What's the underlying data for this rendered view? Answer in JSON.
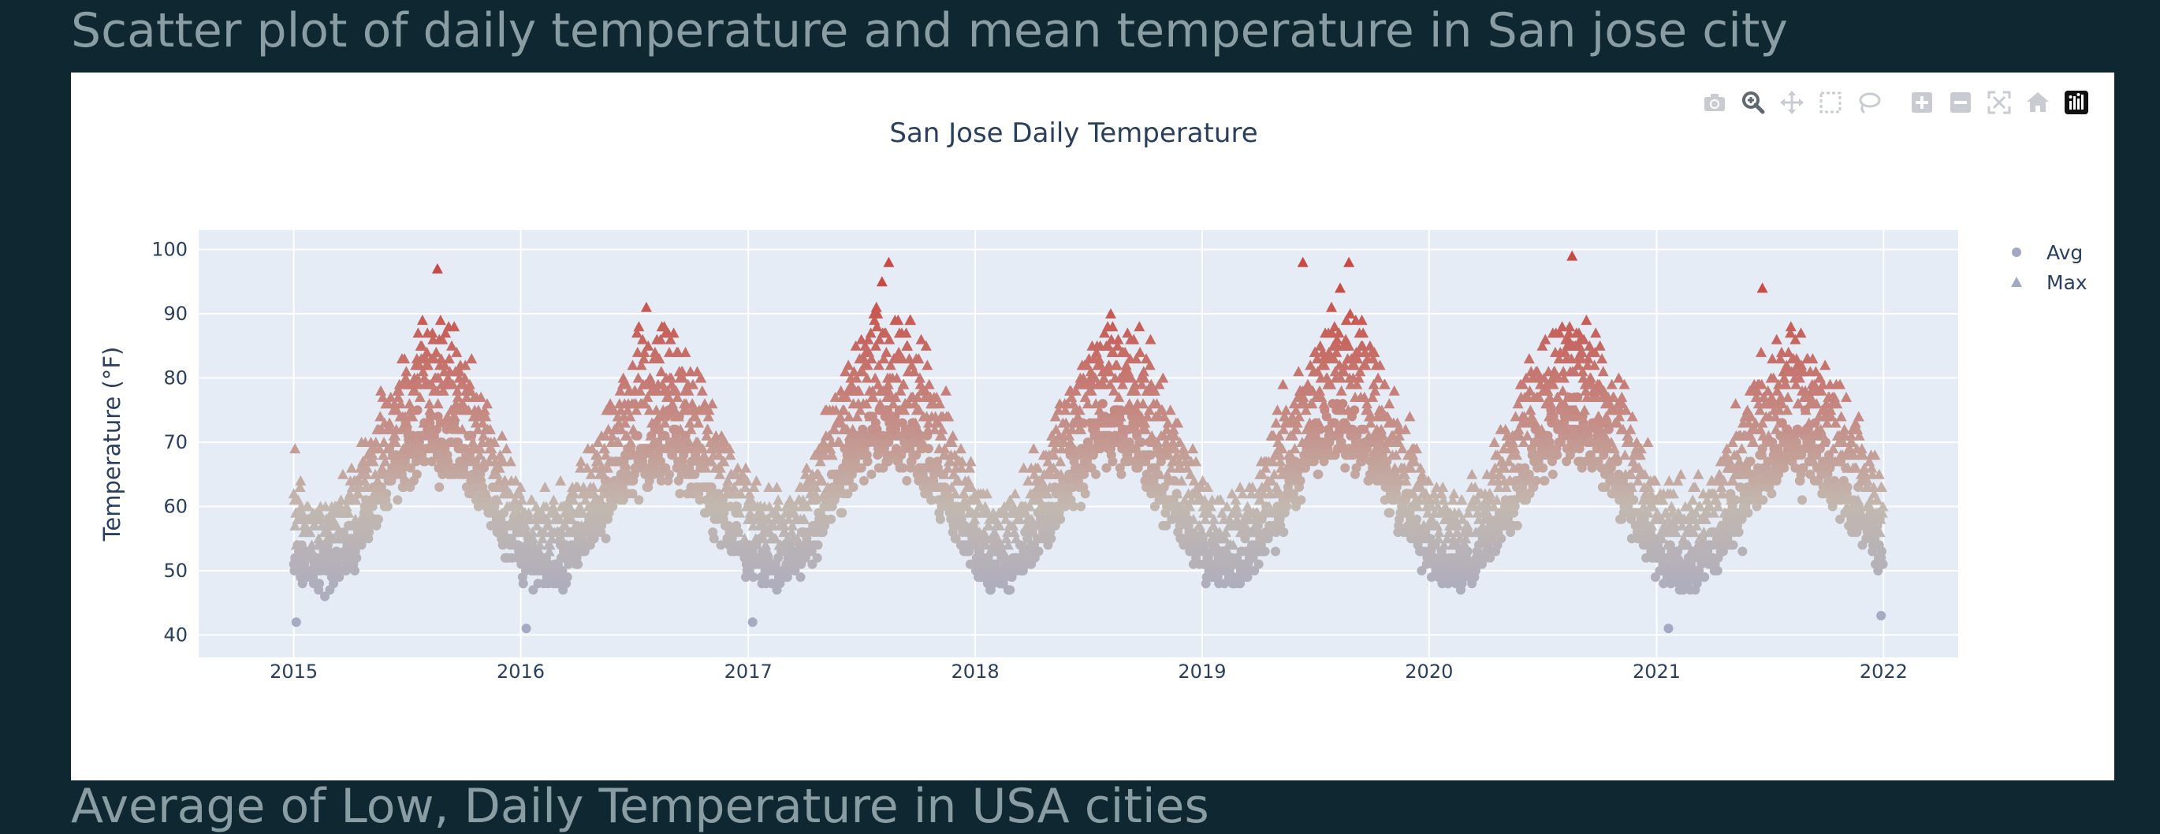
{
  "page": {
    "heading": "Scatter plot of daily temperature and mean temperature in San jose city",
    "next_heading": "Average of  Low, Daily Temperature in USA cities"
  },
  "modebar": [
    {
      "name": "camera-icon",
      "label": "Download plot as a png"
    },
    {
      "name": "zoom-icon",
      "label": "Zoom"
    },
    {
      "name": "pan-icon",
      "label": "Pan"
    },
    {
      "name": "box-select-icon",
      "label": "Box Select"
    },
    {
      "name": "lasso-select-icon",
      "label": "Lasso Select"
    },
    {
      "name": "zoom-in-icon",
      "label": "Zoom in"
    },
    {
      "name": "zoom-out-icon",
      "label": "Zoom out"
    },
    {
      "name": "autoscale-icon",
      "label": "Autoscale"
    },
    {
      "name": "reset-axes-icon",
      "label": "Reset axes"
    },
    {
      "name": "plotly-logo-icon",
      "label": "Produced with Plotly"
    }
  ],
  "colors": {
    "page_bg": "#0e2730",
    "panel_bg": "#ffffff",
    "plot_bg": "#e5ecf6",
    "grid": "#ffffff",
    "text": "#2a3f5f",
    "heading": "#8a9da2",
    "scale_low": "#a3a8c4",
    "scale_mid": "#c2b8b0",
    "scale_high": "#c94a44"
  },
  "chart_data": {
    "type": "scatter",
    "title": "San Jose Daily Temperature",
    "xlabel": "",
    "ylabel": "Temperature (°F)",
    "x_ticks": [
      "2015",
      "2016",
      "2017",
      "2018",
      "2019",
      "2020",
      "2021",
      "2022"
    ],
    "y_ticks": [
      40,
      50,
      60,
      70,
      80,
      90,
      100
    ],
    "xlim": [
      "2014-08-01",
      "2022-05-01"
    ],
    "ylim": [
      36.5,
      103
    ],
    "color_by": "temperature",
    "grid": true,
    "legend_position": "top-right",
    "series": [
      {
        "name": "Avg",
        "marker": "circle",
        "date_range": [
          "2015-01-01",
          "2021-12-31"
        ],
        "seasonal_profile": {
          "winter_low": 50,
          "summer_high": 70,
          "peak_month": "mid-August",
          "daily_spread": 5,
          "min": 41,
          "max": 83
        }
      },
      {
        "name": "Max",
        "marker": "triangle-up",
        "date_range": [
          "2015-01-01",
          "2021-12-31"
        ],
        "seasonal_profile": {
          "winter_low": 57,
          "summer_high": 81,
          "peak_month": "mid-August",
          "daily_spread": 8,
          "min": 50,
          "max": 99
        }
      }
    ],
    "sample_points": {
      "Avg": [
        {
          "x": "2015-01-05",
          "y": 42
        },
        {
          "x": "2016-01-10",
          "y": 41
        },
        {
          "x": "2017-01-08",
          "y": 42
        },
        {
          "x": "2021-01-20",
          "y": 41
        },
        {
          "x": "2018-07-15",
          "y": 71
        },
        {
          "x": "2020-08-20",
          "y": 75
        },
        {
          "x": "2021-12-28",
          "y": 43
        }
      ],
      "Max": [
        {
          "x": "2015-08-20",
          "y": 97
        },
        {
          "x": "2017-08-15",
          "y": 98
        },
        {
          "x": "2019-06-12",
          "y": 98
        },
        {
          "x": "2019-08-25",
          "y": 98
        },
        {
          "x": "2020-08-18",
          "y": 99
        },
        {
          "x": "2021-06-20",
          "y": 94
        },
        {
          "x": "2015-01-03",
          "y": 69
        }
      ]
    }
  }
}
